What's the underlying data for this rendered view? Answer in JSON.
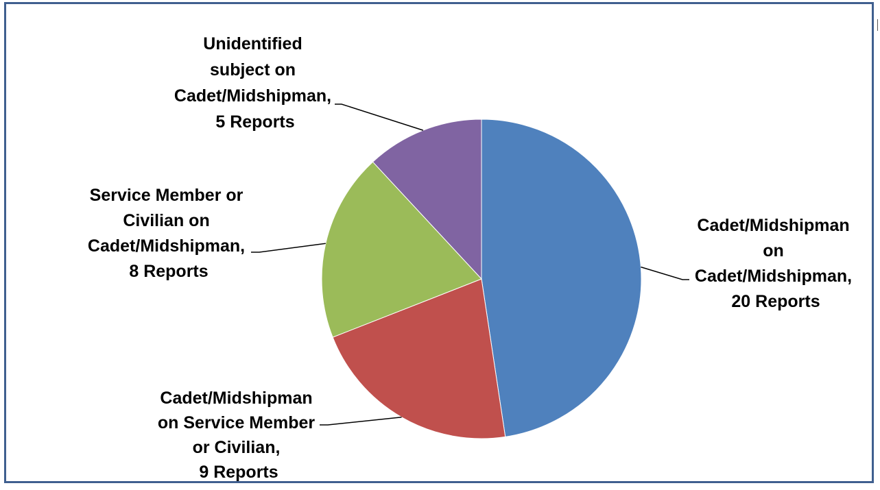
{
  "chart_data": {
    "type": "pie",
    "title": "",
    "slices": [
      {
        "category": "Cadet/Midshipman on Cadet/Midshipman",
        "label_lines": [
          "Cadet/Midshipman",
          "on",
          "Cadet/Midshipman,",
          "20 Reports"
        ],
        "value": 20,
        "color": "#4f81bd"
      },
      {
        "category": "Cadet/Midshipman on Service Member or Civilian",
        "label_lines": [
          "Cadet/Midshipman",
          "on Service Member",
          "or Civilian,",
          "9 Reports"
        ],
        "value": 9,
        "color": "#c0504d"
      },
      {
        "category": "Service Member or Civilian on Cadet/Midshipman",
        "label_lines": [
          "Service Member or",
          "Civilian on",
          "Cadet/Midshipman,",
          "8 Reports"
        ],
        "value": 8,
        "color": "#9bbb59"
      },
      {
        "category": "Unidentified subject on Cadet/Midshipman",
        "label_lines": [
          "Unidentified",
          "subject on",
          "Cadet/Midshipman,",
          "5 Reports"
        ],
        "value": 5,
        "color": "#8064a2"
      }
    ],
    "legend": "none",
    "start": "12 o'clock",
    "direction": "clockwise"
  }
}
